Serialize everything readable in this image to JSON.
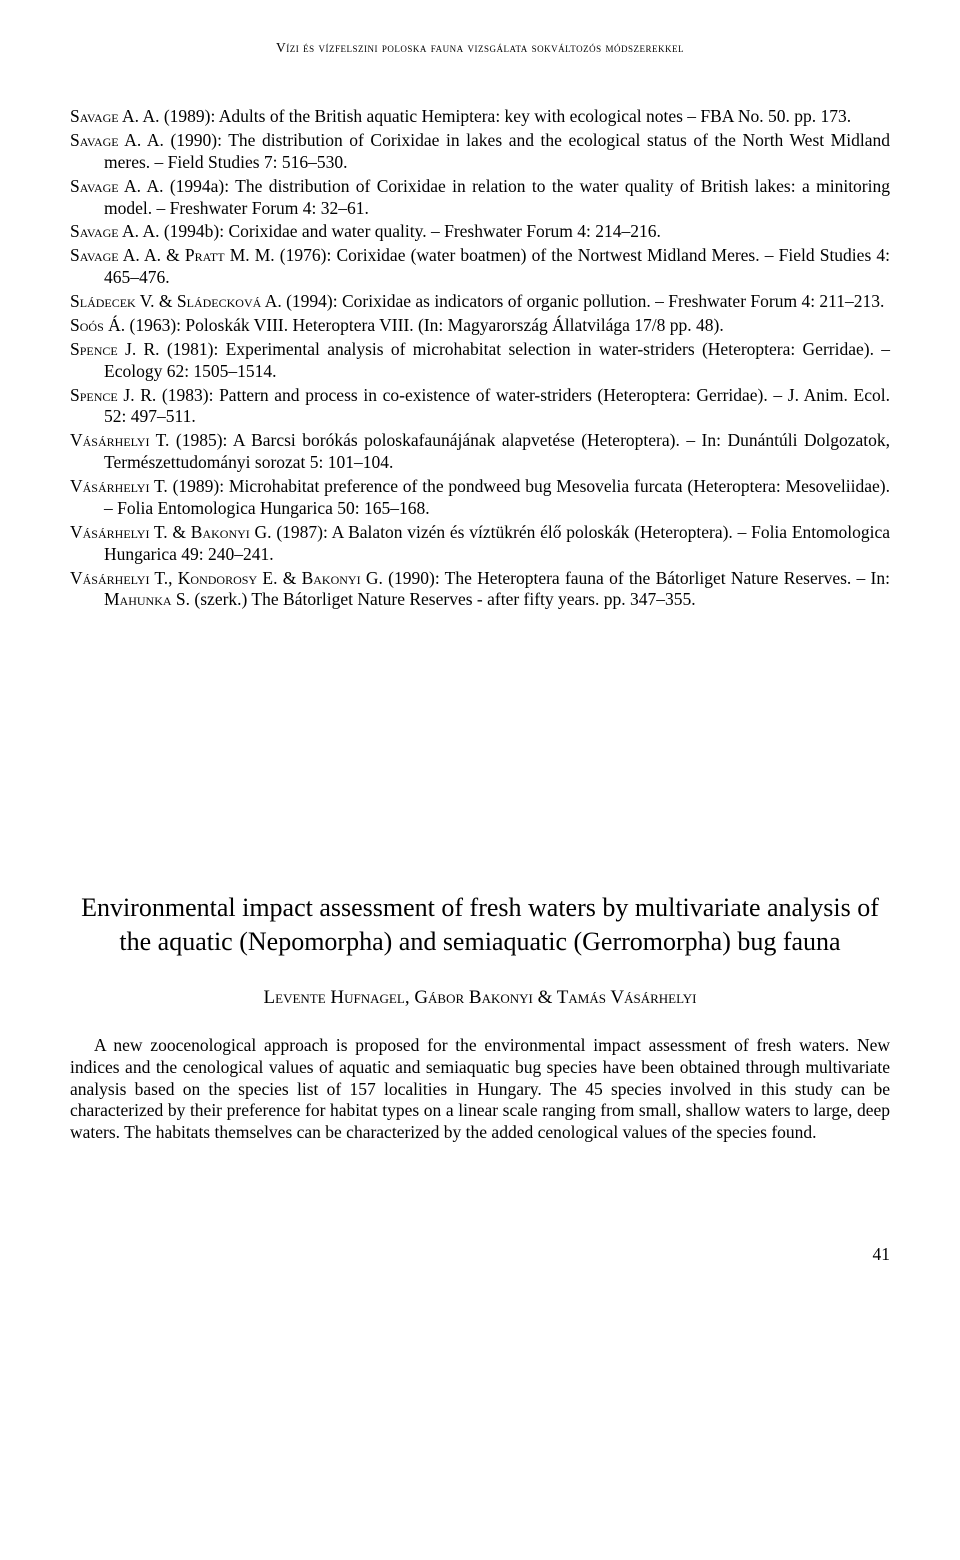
{
  "header": "Vízi és vízfelszini poloska fauna vizsgálata sokváltozós módszerekkel",
  "references": [
    {
      "author": "Savage A. A.",
      "rest": " (1989): Adults of the British aquatic Hemiptera: key with ecological notes – FBA No. 50. pp. 173."
    },
    {
      "author": "Savage A. A.",
      "rest": " (1990): The distribution of Corixidae in lakes and the ecological status of the North West Midland meres. – Field Studies 7: 516–530."
    },
    {
      "author": "Savage A. A.",
      "rest": " (1994a): The distribution of Corixidae in relation to the water quality of British lakes: a minitoring model. – Freshwater Forum 4: 32–61."
    },
    {
      "author": "Savage A. A.",
      "rest": " (1994b): Corixidae and water quality. – Freshwater Forum 4: 214–216."
    },
    {
      "author": "Savage A. A. & Pratt M. M.",
      "rest": " (1976): Corixidae (water boatmen) of the Nortwest Midland Meres. – Field Studies 4: 465–476."
    },
    {
      "author": "Sládecek V. & Sládecková A.",
      "rest": " (1994): Corixidae as indicators of organic pollution. – Freshwater Forum 4: 211–213."
    },
    {
      "author": "Soós Á.",
      "rest": " (1963): Poloskák VIII. Heteroptera VIII. (In: Magyarország Állatvilága 17/8 pp. 48)."
    },
    {
      "author": "Spence J. R.",
      "rest": " (1981): Experimental analysis of microhabitat selection in water-striders (Heteroptera: Gerridae). – Ecology 62: 1505–1514."
    },
    {
      "author": "Spence J. R.",
      "rest": " (1983): Pattern and process in co-existence of water-striders (Heteroptera: Gerridae). – J. Anim. Ecol. 52: 497–511."
    },
    {
      "author": "Vásárhelyi T.",
      "rest": " (1985): A Barcsi borókás poloskafaunájának alapvetése (Heteroptera). – In: Dunántúli Dolgozatok, Természettudományi sorozat 5: 101–104."
    },
    {
      "author": "Vásárhelyi T.",
      "rest": " (1989): Microhabitat preference of the pondweed bug Mesovelia furcata (Heteroptera: Mesoveliidae). – Folia Entomologica Hungarica 50: 165–168."
    },
    {
      "author": "Vásárhelyi T. & Bakonyi G.",
      "rest": " (1987): A Balaton vizén és víztükrén élő poloskák (Heteroptera). – Folia Entomologica Hungarica 49: 240–241."
    },
    {
      "author": "Vásárhelyi T., Kondorosy E. & Bakonyi G.",
      "rest": " (1990): The Heteroptera fauna of the Bátorliget Nature Reserves. – In: ",
      "author2": "Mahunka S.",
      "rest2": " (szerk.) The Bátorliget Nature Reserves - after fifty years. pp. 347–355."
    }
  ],
  "title": "Environmental impact assessment of fresh waters by multivariate analysis of the aquatic (Nepomorpha) and semiaquatic (Gerromorpha) bug fauna",
  "authors": "Levente Hufnagel, Gábor Bakonyi & Tamás Vásárhelyi",
  "abstract": "A new zoocenological approach is proposed for the environmental impact assessment of fresh waters. New indices and the cenological values of aquatic and semiaquatic bug species have been obtained through multivariate analysis based on the species list of 157 localities in Hungary. The 45 species involved in this study can be characterized by their preference for habitat types on a linear scale ranging from small, shallow waters to large, deep waters. The habitats themselves can be characterized by the added cenological values of the species found.",
  "pageNumber": "41"
}
